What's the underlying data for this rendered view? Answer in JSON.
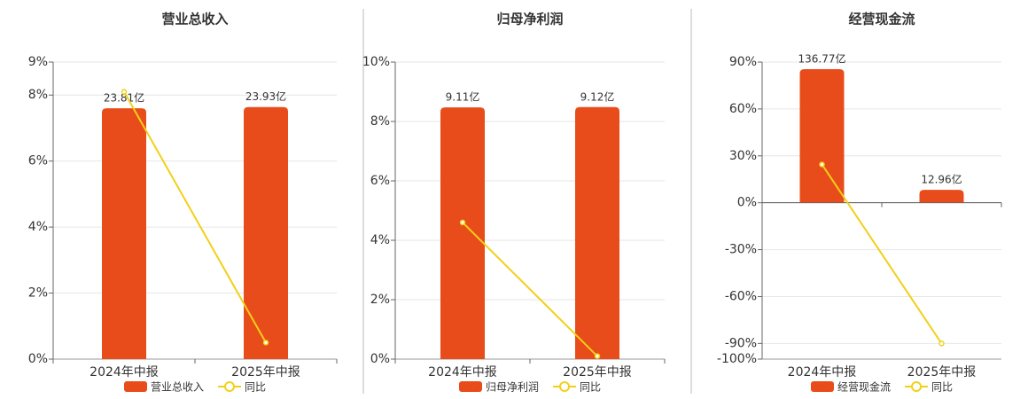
{
  "chart_data": [
    {
      "type": "bar_line",
      "title": "营业总收入",
      "categories": [
        "2024年中报",
        "2025年中报"
      ],
      "series": [
        {
          "name": "营业总收入",
          "color": "#e84c1a",
          "axis": "y2",
          "values": [
            23.81,
            23.93
          ],
          "value_labels": [
            "23.81亿",
            "23.93亿"
          ]
        },
        {
          "name": "同比",
          "color": "#f2d019",
          "values": [
            8.1,
            0.5
          ]
        }
      ],
      "ylim": [
        0,
        9
      ],
      "yticks": [
        {
          "value": 0,
          "label": "0%"
        },
        {
          "value": 2,
          "label": "2%"
        },
        {
          "value": 4,
          "label": "4%"
        },
        {
          "value": 6,
          "label": "6%"
        },
        {
          "value": 8,
          "label": "8%"
        },
        {
          "value": 9,
          "label": "9%"
        }
      ],
      "y2lim": [
        0,
        28.2
      ],
      "grid": true
    },
    {
      "type": "bar_line",
      "title": "归母净利润",
      "categories": [
        "2024年中报",
        "2025年中报"
      ],
      "series": [
        {
          "name": "归母净利润",
          "color": "#e84c1a",
          "axis": "y2",
          "values": [
            9.11,
            9.12
          ],
          "value_labels": [
            "9.11亿",
            "9.12亿"
          ]
        },
        {
          "name": "同比",
          "color": "#f2d019",
          "values": [
            4.6,
            0.1
          ]
        }
      ],
      "ylim": [
        0,
        10
      ],
      "yticks": [
        {
          "value": 0,
          "label": "0%"
        },
        {
          "value": 2,
          "label": "2%"
        },
        {
          "value": 4,
          "label": "4%"
        },
        {
          "value": 6,
          "label": "6%"
        },
        {
          "value": 8,
          "label": "8%"
        },
        {
          "value": 10,
          "label": "10%"
        }
      ],
      "y2lim": [
        0,
        10.75
      ],
      "grid": true
    },
    {
      "type": "bar_line",
      "title": "经营现金流",
      "categories": [
        "2024年中报",
        "2025年中报"
      ],
      "series": [
        {
          "name": "经营现金流",
          "color": "#e84c1a",
          "axis": "y2",
          "values": [
            136.77,
            12.96
          ],
          "value_labels": [
            "136.77亿",
            "12.96亿"
          ]
        },
        {
          "name": "同比",
          "color": "#f2d019",
          "values": [
            24.5,
            -90
          ]
        }
      ],
      "ylim": [
        -100,
        90
      ],
      "yticks": [
        {
          "value": -100,
          "label": "-100%"
        },
        {
          "value": -90,
          "label": "-90%"
        },
        {
          "value": -60,
          "label": "-60%"
        },
        {
          "value": -30,
          "label": "-30%"
        },
        {
          "value": 0,
          "label": "0%"
        },
        {
          "value": 30,
          "label": "30%"
        },
        {
          "value": 60,
          "label": "60%"
        },
        {
          "value": 90,
          "label": "90%"
        }
      ],
      "y2lim": [
        -160.5,
        144
      ],
      "grid": true
    }
  ]
}
